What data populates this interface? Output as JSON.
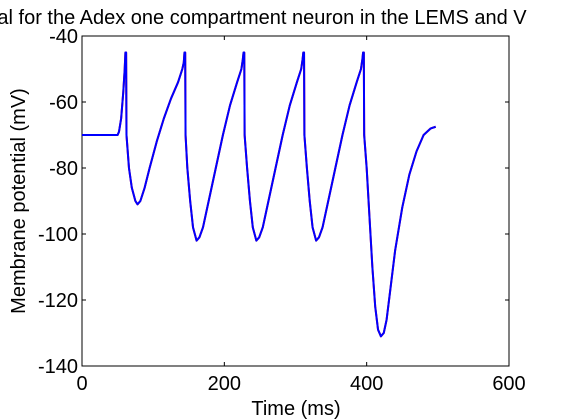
{
  "chart_data": {
    "type": "line",
    "title": "al for the Adex one compartment neuron in the LEMS and V",
    "xlabel": "Time (ms)",
    "ylabel": "Membrane potential (mV)",
    "xlim": [
      0,
      600
    ],
    "ylim": [
      -140,
      -40
    ],
    "xticks": [
      0,
      200,
      400,
      600
    ],
    "yticks": [
      -40,
      -60,
      -80,
      -100,
      -120,
      -140
    ],
    "grid": false,
    "legend": "none",
    "colors": {
      "axes": "#000000",
      "background": "#ffffff"
    },
    "series": [
      {
        "color": "#ff0000",
        "points": [
          [
            0,
            -70
          ],
          [
            50,
            -70
          ],
          [
            52,
            -69
          ],
          [
            55,
            -65
          ],
          [
            58,
            -57
          ],
          [
            60,
            -50
          ],
          [
            61,
            -45
          ],
          [
            62,
            -45
          ],
          [
            62.5,
            -70
          ],
          [
            66,
            -80
          ],
          [
            70,
            -86
          ],
          [
            75,
            -90
          ],
          [
            78,
            -91
          ],
          [
            82,
            -90
          ],
          [
            88,
            -86
          ],
          [
            95,
            -80
          ],
          [
            105,
            -72
          ],
          [
            115,
            -65
          ],
          [
            125,
            -59
          ],
          [
            135,
            -54
          ],
          [
            141,
            -50
          ],
          [
            143,
            -48
          ],
          [
            144,
            -45
          ],
          [
            145,
            -45
          ],
          [
            145.5,
            -70
          ],
          [
            148,
            -80
          ],
          [
            152,
            -90
          ],
          [
            156,
            -98
          ],
          [
            161,
            -102
          ],
          [
            165,
            -101
          ],
          [
            170,
            -98
          ],
          [
            178,
            -90
          ],
          [
            188,
            -80
          ],
          [
            198,
            -70
          ],
          [
            208,
            -61
          ],
          [
            218,
            -54
          ],
          [
            224,
            -50
          ],
          [
            226,
            -47
          ],
          [
            227,
            -45
          ],
          [
            228,
            -45
          ],
          [
            228.5,
            -70
          ],
          [
            232,
            -80
          ],
          [
            236,
            -90
          ],
          [
            240,
            -98
          ],
          [
            245,
            -102
          ],
          [
            249,
            -101
          ],
          [
            254,
            -98
          ],
          [
            262,
            -90
          ],
          [
            272,
            -80
          ],
          [
            282,
            -70
          ],
          [
            292,
            -61
          ],
          [
            302,
            -54
          ],
          [
            308,
            -50
          ],
          [
            310,
            -47
          ],
          [
            311,
            -45
          ],
          [
            312,
            -45
          ],
          [
            312.5,
            -70
          ],
          [
            316,
            -80
          ],
          [
            320,
            -90
          ],
          [
            324,
            -98
          ],
          [
            329,
            -102
          ],
          [
            333,
            -101
          ],
          [
            338,
            -98
          ],
          [
            346,
            -90
          ],
          [
            356,
            -80
          ],
          [
            366,
            -70
          ],
          [
            376,
            -61
          ],
          [
            386,
            -54
          ],
          [
            392,
            -50
          ],
          [
            394,
            -47
          ],
          [
            395,
            -45
          ],
          [
            396,
            -45
          ],
          [
            396.5,
            -70
          ],
          [
            400,
            -80
          ],
          [
            404,
            -95
          ],
          [
            408,
            -110
          ],
          [
            412,
            -122
          ],
          [
            416,
            -129
          ],
          [
            420,
            -131
          ],
          [
            424,
            -130
          ],
          [
            428,
            -126
          ],
          [
            432,
            -119
          ],
          [
            440,
            -105
          ],
          [
            450,
            -92
          ],
          [
            460,
            -82
          ],
          [
            470,
            -75
          ],
          [
            480,
            -70
          ],
          [
            490,
            -68
          ],
          [
            497,
            -67.5
          ]
        ]
      },
      {
        "color": "#0000ff",
        "points": [
          [
            0,
            -70
          ],
          [
            50,
            -70
          ],
          [
            52,
            -69
          ],
          [
            55,
            -65
          ],
          [
            58,
            -57
          ],
          [
            60,
            -50
          ],
          [
            61,
            -45
          ],
          [
            62,
            -45
          ],
          [
            62.5,
            -70
          ],
          [
            66,
            -80
          ],
          [
            70,
            -86
          ],
          [
            75,
            -90
          ],
          [
            78,
            -91
          ],
          [
            82,
            -90
          ],
          [
            88,
            -86
          ],
          [
            95,
            -80
          ],
          [
            105,
            -72
          ],
          [
            115,
            -65
          ],
          [
            125,
            -59
          ],
          [
            135,
            -54
          ],
          [
            141,
            -50
          ],
          [
            143,
            -48
          ],
          [
            144,
            -45
          ],
          [
            145,
            -45
          ],
          [
            145.5,
            -70
          ],
          [
            148,
            -80
          ],
          [
            152,
            -90
          ],
          [
            156,
            -98
          ],
          [
            161,
            -102
          ],
          [
            165,
            -101
          ],
          [
            170,
            -98
          ],
          [
            178,
            -90
          ],
          [
            188,
            -80
          ],
          [
            198,
            -70
          ],
          [
            208,
            -61
          ],
          [
            218,
            -54
          ],
          [
            224,
            -50
          ],
          [
            226,
            -47
          ],
          [
            227,
            -45
          ],
          [
            228,
            -45
          ],
          [
            228.5,
            -70
          ],
          [
            232,
            -80
          ],
          [
            236,
            -90
          ],
          [
            240,
            -98
          ],
          [
            245,
            -102
          ],
          [
            249,
            -101
          ],
          [
            254,
            -98
          ],
          [
            262,
            -90
          ],
          [
            272,
            -80
          ],
          [
            282,
            -70
          ],
          [
            292,
            -61
          ],
          [
            302,
            -54
          ],
          [
            308,
            -50
          ],
          [
            310,
            -47
          ],
          [
            311,
            -45
          ],
          [
            312,
            -45
          ],
          [
            312.5,
            -70
          ],
          [
            316,
            -80
          ],
          [
            320,
            -90
          ],
          [
            324,
            -98
          ],
          [
            329,
            -102
          ],
          [
            333,
            -101
          ],
          [
            338,
            -98
          ],
          [
            346,
            -90
          ],
          [
            356,
            -80
          ],
          [
            366,
            -70
          ],
          [
            376,
            -61
          ],
          [
            386,
            -54
          ],
          [
            392,
            -50
          ],
          [
            394,
            -47
          ],
          [
            395,
            -45
          ],
          [
            396,
            -45
          ],
          [
            396.5,
            -70
          ],
          [
            400,
            -80
          ],
          [
            404,
            -95
          ],
          [
            408,
            -110
          ],
          [
            412,
            -122
          ],
          [
            416,
            -129
          ],
          [
            420,
            -131
          ],
          [
            424,
            -130
          ],
          [
            428,
            -126
          ],
          [
            432,
            -119
          ],
          [
            440,
            -105
          ],
          [
            450,
            -92
          ],
          [
            460,
            -82
          ],
          [
            470,
            -75
          ],
          [
            480,
            -70
          ],
          [
            490,
            -68
          ],
          [
            497,
            -67.5
          ]
        ]
      }
    ]
  }
}
